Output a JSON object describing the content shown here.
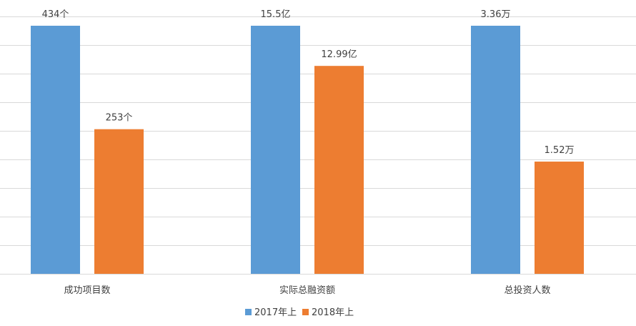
{
  "chart_data": {
    "type": "bar",
    "categories": [
      "成功项目数",
      "实际总融资额",
      "总投资人数"
    ],
    "series": [
      {
        "name": "2017年上",
        "color": "#5B9BD5",
        "values": [
          434,
          15.5,
          3.36
        ],
        "labels": [
          "434个",
          "15.5亿",
          "3.36万"
        ]
      },
      {
        "name": "2018年上",
        "color": "#ED7D31",
        "values": [
          253,
          12.99,
          1.52
        ],
        "labels": [
          "253个",
          "12.99亿",
          "1.52万"
        ]
      }
    ],
    "legend_position": "bottom",
    "grid": true,
    "gridline_color": "#D9D9D9",
    "normalization_note": "each category scaled so the 2017 bar reaches the same height"
  }
}
